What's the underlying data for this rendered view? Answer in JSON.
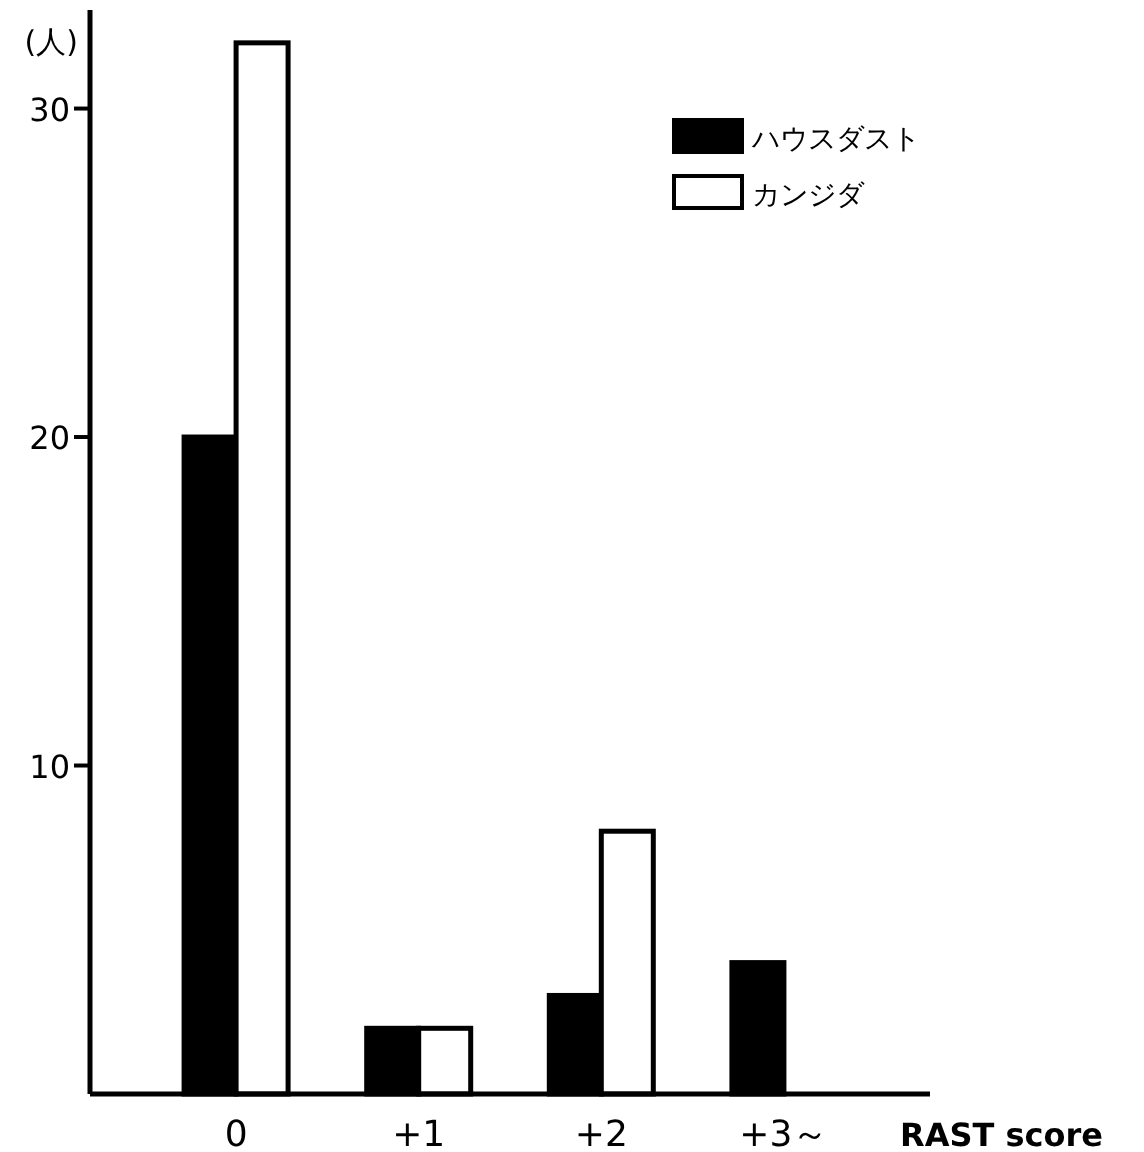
{
  "chart_data": {
    "type": "bar",
    "ylabel": "(人)",
    "xlabel": "RAST score",
    "categories": [
      "0",
      "+1",
      "+2",
      "+3～"
    ],
    "series": [
      {
        "name": "ハウスダスト",
        "color": "#000000",
        "values": [
          20,
          2,
          3,
          4
        ]
      },
      {
        "name": "カンジダ",
        "color": "#ffffff",
        "values": [
          32,
          2,
          8,
          null
        ]
      }
    ],
    "ylim": [
      0,
      33
    ],
    "yticks": [
      10,
      20,
      30
    ],
    "grid": false,
    "legend": "top right"
  }
}
